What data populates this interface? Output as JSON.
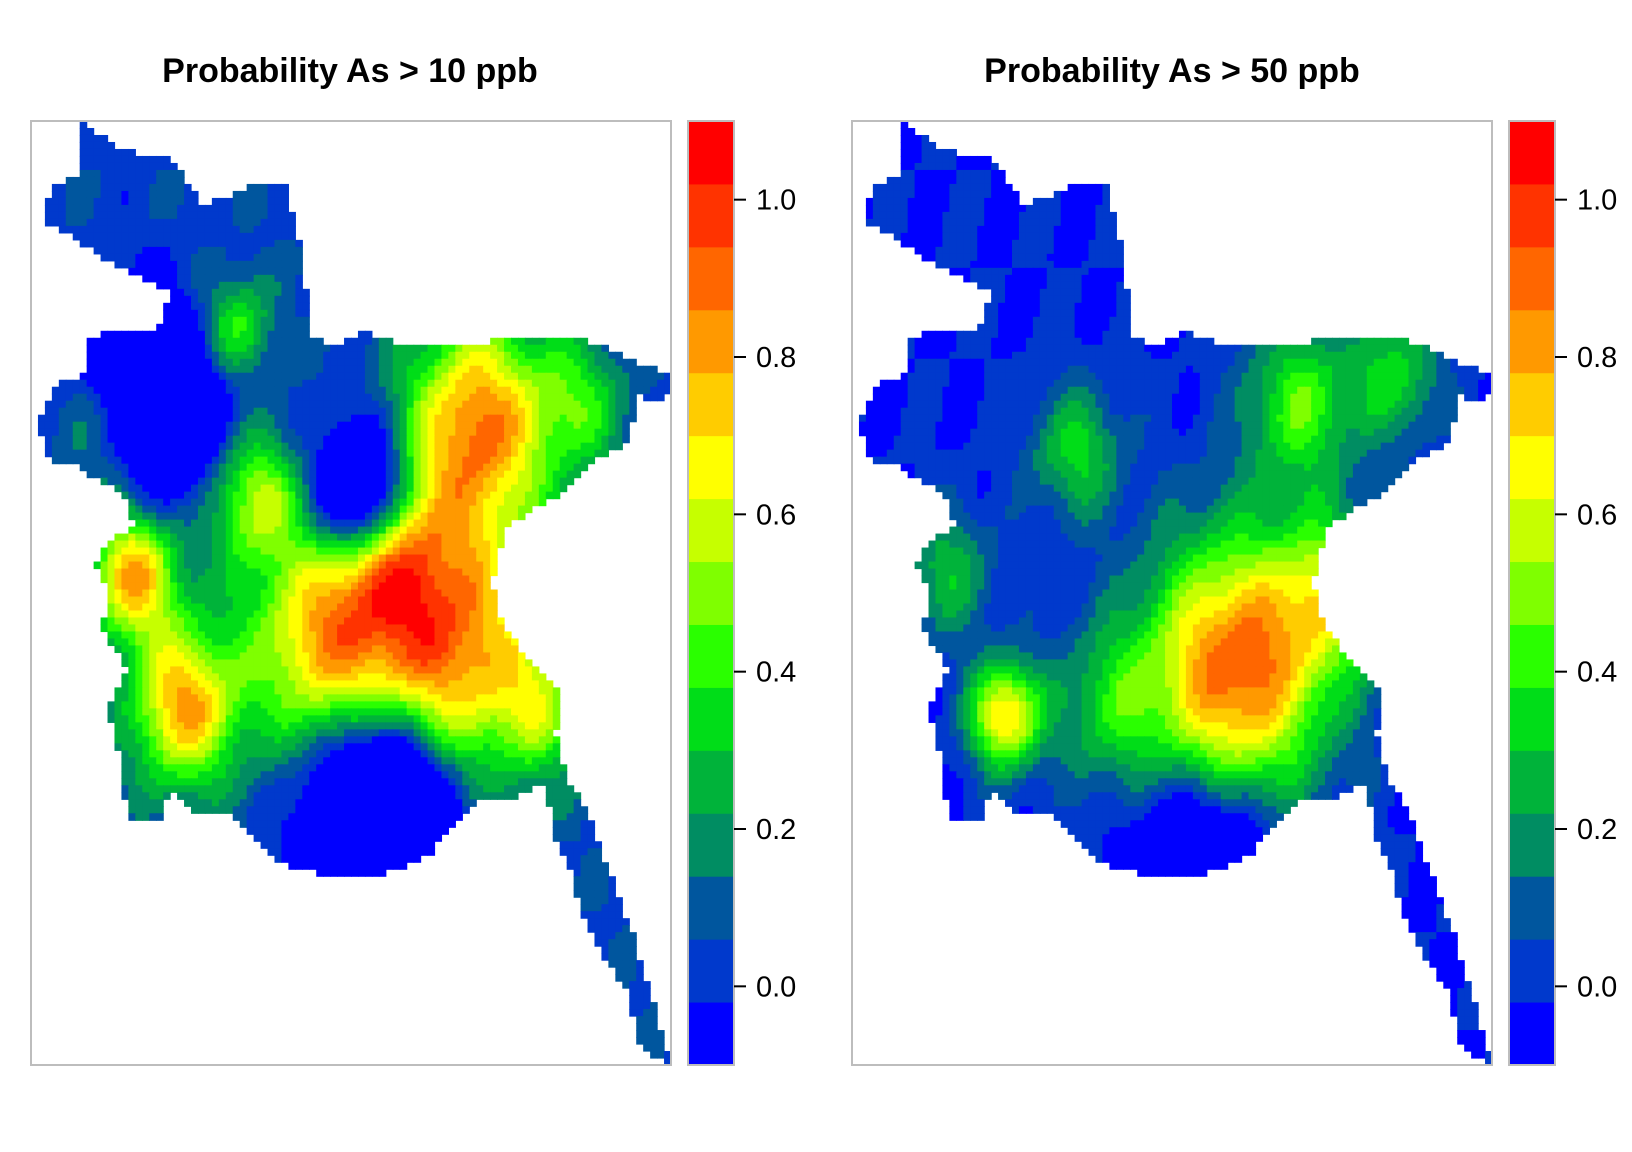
{
  "panels": [
    {
      "title": "Probability As > 10 ppb",
      "pattern": "high-10ppb"
    },
    {
      "title": "Probability As > 50 ppb",
      "pattern": "high-50ppb"
    }
  ],
  "colorbar": {
    "range": [
      -0.1,
      1.1
    ],
    "ticks": [
      "0.0",
      "0.2",
      "0.4",
      "0.6",
      "0.8",
      "1.0"
    ],
    "tick_values": [
      0.0,
      0.2,
      0.4,
      0.6,
      0.8,
      1.0
    ],
    "colors": [
      "#0000ff",
      "#0039cc",
      "#00569e",
      "#008d62",
      "#00b33a",
      "#00dd18",
      "#2aff00",
      "#7fff00",
      "#c6ff00",
      "#ffff00",
      "#ffcc00",
      "#ff9900",
      "#ff6600",
      "#ff3300",
      "#ff0000"
    ]
  },
  "frame_color": "#bdbdbd"
}
